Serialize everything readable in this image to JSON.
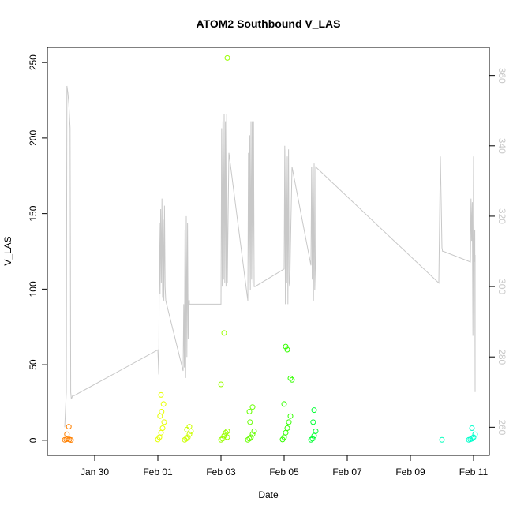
{
  "chart_data": {
    "type": "scatter",
    "title": "ATOM2 Southbound V_LAS",
    "xlabel": "Date",
    "ylabel": "V_LAS",
    "x_ticks": [
      "Jan 30",
      "Feb 01",
      "Feb 03",
      "Feb 05",
      "Feb 07",
      "Feb 09",
      "Feb 11"
    ],
    "x_tick_days": [
      30,
      32,
      34,
      36,
      38,
      40,
      42
    ],
    "xlim_days": [
      28.5,
      42.5
    ],
    "y_ticks": [
      "0",
      "50",
      "100",
      "150",
      "200",
      "250"
    ],
    "y_tick_values": [
      0,
      50,
      100,
      150,
      200,
      250
    ],
    "ylim": [
      -10,
      260
    ],
    "y2_ticks": [
      "260",
      "280",
      "300",
      "320",
      "340",
      "360"
    ],
    "y2_tick_values": [
      260,
      280,
      300,
      320,
      340,
      360
    ],
    "y2lim": [
      252,
      368
    ],
    "point_series": [
      {
        "color": "#ff8000",
        "x": [
          29.05,
          29.1,
          29.15,
          29.2,
          29.25,
          29.12,
          29.18
        ],
        "y": [
          0.3,
          0.6,
          1,
          0.5,
          0.2,
          4,
          9
        ]
      },
      {
        "color": "#e6ff00",
        "x": [
          32.0,
          32.05,
          32.1,
          32.15,
          32.2,
          32.07,
          32.12,
          32.18,
          32.1
        ],
        "y": [
          0.5,
          2,
          5,
          8,
          12,
          16,
          19,
          24,
          30
        ]
      },
      {
        "color": "#ccff00",
        "x": [
          32.85,
          32.9,
          32.95,
          33.0,
          33.05,
          32.92,
          33.0
        ],
        "y": [
          0.3,
          1,
          2,
          4,
          6,
          7,
          9
        ]
      },
      {
        "color": "#99ff00",
        "x": [
          34.0,
          34.05,
          34.1,
          34.15,
          34.2,
          34.1,
          34.2,
          34.0,
          34.2
        ],
        "y": [
          0.3,
          1,
          3,
          5,
          2,
          71,
          253,
          37,
          6
        ]
      },
      {
        "color": "#66ff00",
        "x": [
          34.85,
          34.9,
          34.95,
          35.0,
          35.05,
          34.92,
          34.9,
          35.0
        ],
        "y": [
          0.3,
          1,
          2,
          4,
          6,
          12,
          19,
          22
        ]
      },
      {
        "color": "#33ff00",
        "x": [
          35.95,
          36.0,
          36.05,
          36.1,
          36.15,
          36.2,
          36.0,
          36.05,
          36.2,
          36.25,
          36.1
        ],
        "y": [
          0.5,
          2,
          5,
          8,
          12,
          16,
          24,
          62,
          41,
          40,
          60
        ]
      },
      {
        "color": "#00ff33",
        "x": [
          36.85,
          36.9,
          36.95,
          37.0,
          36.92,
          36.95
        ],
        "y": [
          0.3,
          1,
          3,
          6,
          12,
          20
        ]
      },
      {
        "color": "#00ffbb",
        "x": [
          41.0
        ],
        "y": [
          0.3
        ]
      },
      {
        "color": "#00ffcc",
        "x": [
          41.85,
          41.9,
          41.95,
          42.0,
          42.05,
          41.95
        ],
        "y": [
          0.3,
          0.6,
          1,
          2,
          4,
          8
        ]
      }
    ],
    "line_series": {
      "color": "#c8c8c8",
      "x": [
        29.05,
        29.1,
        29.12,
        29.15,
        29.18,
        29.22,
        29.24,
        29.26,
        29.3,
        29.35,
        32.0,
        32.03,
        32.05,
        32.07,
        32.09,
        32.11,
        32.13,
        32.15,
        32.17,
        32.19,
        32.21,
        32.23,
        32.25,
        32.8,
        32.82,
        32.84,
        32.86,
        32.88,
        32.9,
        32.92,
        32.94,
        32.96,
        32.98,
        33.0,
        33.0,
        34.0,
        34.02,
        34.04,
        34.06,
        34.08,
        34.1,
        34.12,
        34.14,
        34.16,
        34.18,
        34.2,
        34.25,
        34.85,
        34.87,
        34.89,
        34.91,
        34.93,
        34.95,
        34.97,
        34.99,
        35.01,
        35.03,
        35.05,
        35.08,
        36.0,
        36.02,
        36.04,
        36.06,
        36.08,
        36.1,
        36.12,
        36.14,
        36.16,
        36.18,
        36.2,
        36.25,
        36.85,
        36.87,
        36.89,
        36.91,
        36.93,
        36.95,
        36.97,
        36.99,
        37.0,
        40.9,
        40.95,
        41.0,
        41.02,
        41.05,
        41.9,
        41.92,
        41.94,
        41.96,
        41.98,
        42.0,
        42.02,
        42.04,
        42.05,
        42.05
      ],
      "y": [
        260,
        270,
        357,
        355,
        352,
        345,
        270,
        268,
        269,
        269,
        282,
        275,
        318,
        298,
        322,
        301,
        325,
        297,
        319,
        296,
        323,
        300,
        296,
        276,
        295,
        277,
        316,
        274,
        320,
        280,
        318,
        285,
        296,
        296,
        295,
        295,
        345,
        300,
        347,
        302,
        349,
        301,
        347,
        300,
        349,
        301,
        338,
        296,
        338,
        301,
        343,
        299,
        347,
        302,
        347,
        301,
        347,
        300,
        300,
        305,
        340,
        295,
        339,
        301,
        337,
        295,
        339,
        301,
        300,
        311,
        334,
        306,
        334,
        302,
        334,
        296,
        335,
        299,
        306,
        334,
        301,
        337,
        311,
        310,
        310,
        307,
        325,
        313,
        324,
        286,
        337,
        307,
        316,
        270,
        309
      ]
    }
  }
}
